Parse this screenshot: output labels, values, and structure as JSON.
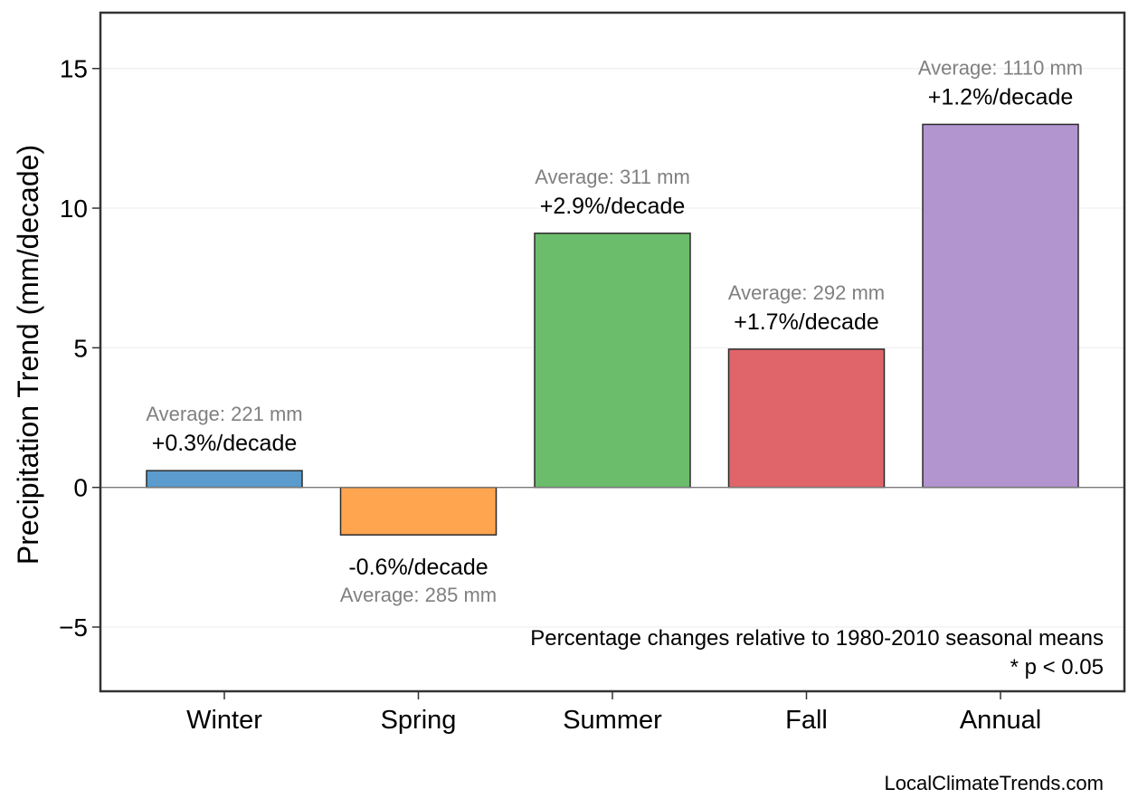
{
  "chart_data": {
    "type": "bar",
    "categories": [
      "Winter",
      "Spring",
      "Summer",
      "Fall",
      "Annual"
    ],
    "values": [
      0.6,
      -1.7,
      9.1,
      4.95,
      13.0
    ],
    "colors": [
      "#5b9bcd",
      "#ffa54f",
      "#6cbd6b",
      "#e0656a",
      "#b294cf"
    ],
    "pct_labels": [
      "+0.3%/decade",
      "-0.6%/decade",
      "+2.9%/decade",
      "+1.7%/decade",
      "+1.2%/decade"
    ],
    "avg_labels": [
      "Average: 221 mm",
      "Average: 285 mm",
      "Average: 311 mm",
      "Average: 292 mm",
      "Average: 1110 mm"
    ],
    "ylabel": "Precipitation Trend (mm/decade)",
    "xlabel": "",
    "ylim": [
      -7.3,
      17
    ],
    "yticks": [
      -5,
      0,
      5,
      10,
      15
    ],
    "ytick_labels": [
      "−5",
      "0",
      "5",
      "10",
      "15"
    ],
    "grid": true,
    "zero_line": true
  },
  "annotations": {
    "note_line1": "Percentage changes relative to 1980-2010 seasonal means",
    "note_line2": "* p < 0.05"
  },
  "credit": "LocalClimateTrends.com"
}
